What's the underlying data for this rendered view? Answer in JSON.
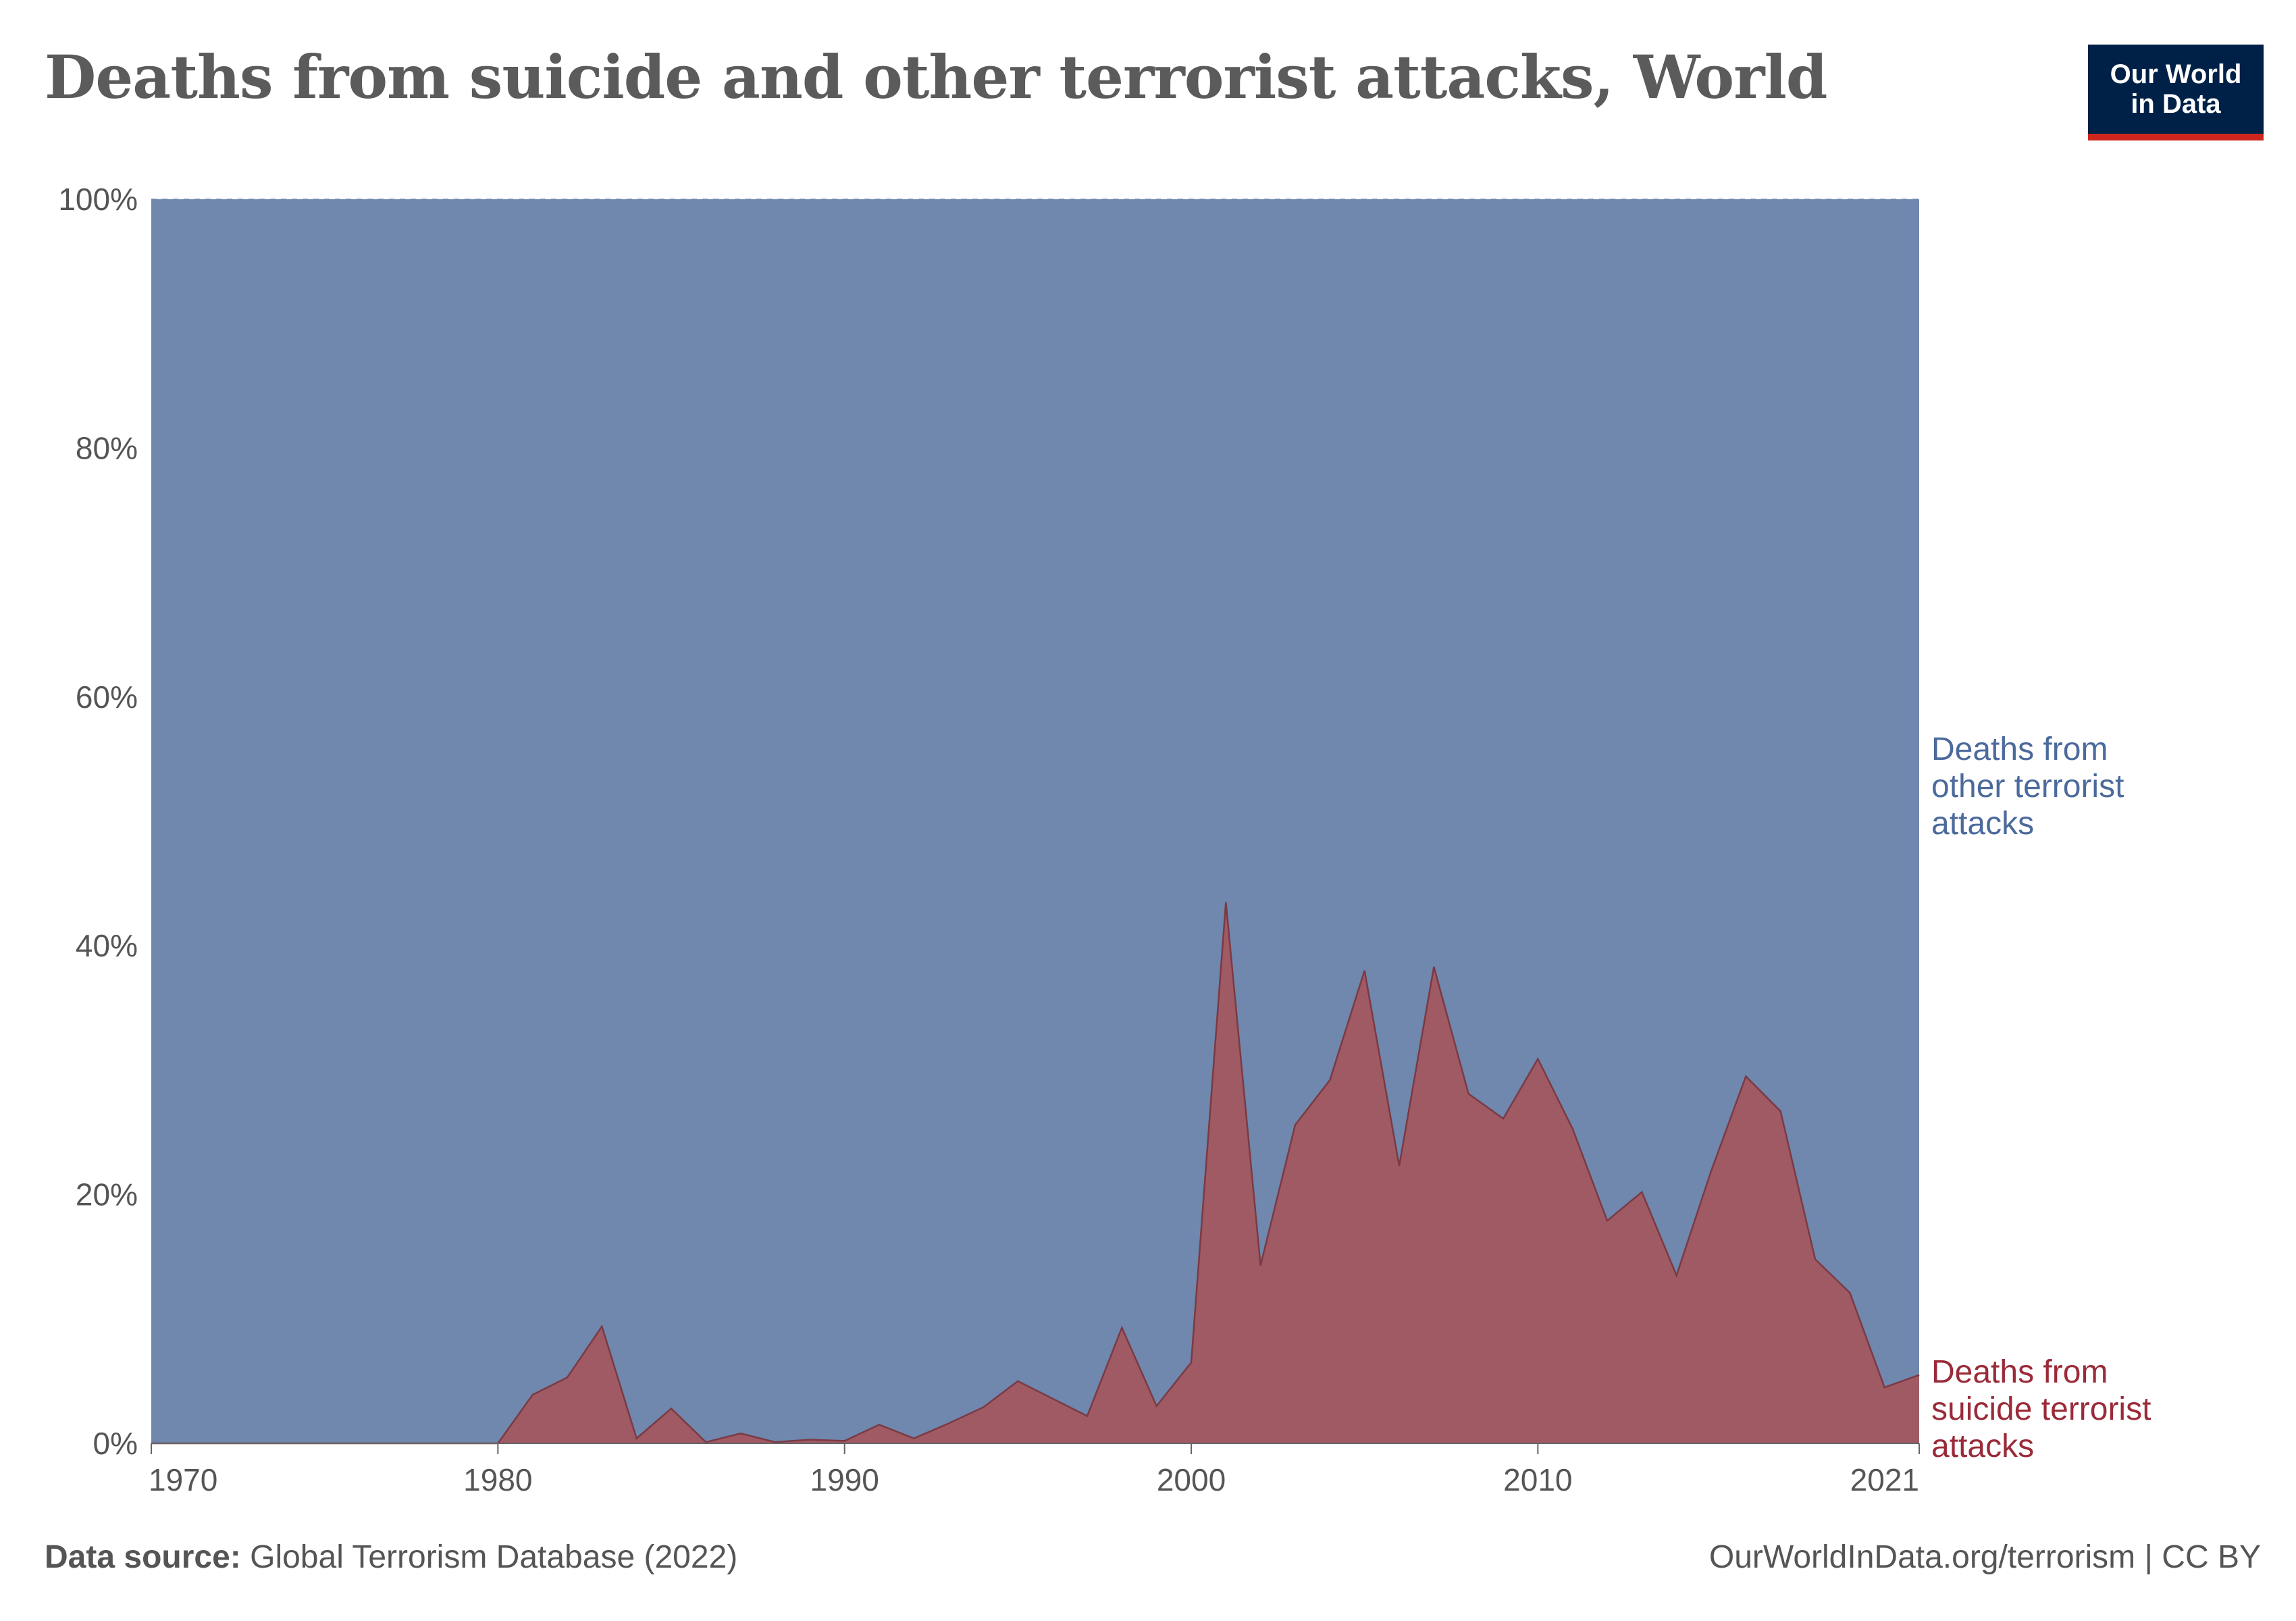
{
  "header": {
    "title": "Deaths from suicide and other terrorist attacks, World",
    "logo_line1": "Our World",
    "logo_line2": "in Data"
  },
  "footer": {
    "source_label": "Data source:",
    "source_text": "Global Terrorism Database (2022)",
    "url_text": "OurWorldInData.org/terrorism | CC BY"
  },
  "colors": {
    "other": "#7087AE",
    "suicide": "#A05A63",
    "suicide_line": "#7A3A44",
    "other_label": "#4C6A9C",
    "suicide_label": "#9A2B39",
    "axis_text": "#555555",
    "grid": "#8FA2C4"
  },
  "chart_data": {
    "type": "area",
    "stacking": "percent",
    "title": "Deaths from suicide and other terrorist attacks, World",
    "xlim": [
      1970,
      2021
    ],
    "ylim": [
      0,
      100
    ],
    "x_ticks": [
      1970,
      1980,
      1990,
      2000,
      2010,
      2021
    ],
    "y_ticks": [
      0,
      20,
      40,
      60,
      80,
      100
    ],
    "y_tick_labels": [
      "0%",
      "20%",
      "40%",
      "60%",
      "80%",
      "100%"
    ],
    "grid": "horizontal dashed",
    "legend": "right, end labels",
    "x": [
      1970,
      1971,
      1972,
      1973,
      1974,
      1975,
      1976,
      1977,
      1978,
      1979,
      1980,
      1981,
      1982,
      1983,
      1984,
      1985,
      1986,
      1987,
      1988,
      1989,
      1990,
      1991,
      1992,
      1993,
      1994,
      1995,
      1996,
      1997,
      1998,
      1999,
      2000,
      2001,
      2002,
      2003,
      2004,
      2005,
      2006,
      2007,
      2008,
      2009,
      2010,
      2011,
      2012,
      2013,
      2014,
      2015,
      2016,
      2017,
      2018,
      2019,
      2020,
      2021
    ],
    "series": [
      {
        "name": "Deaths from suicide terrorist attacks",
        "label_lines": [
          "Deaths from",
          "suicide terrorist",
          "attacks"
        ],
        "values": [
          0,
          0,
          0,
          0,
          0,
          0,
          0,
          0,
          0,
          0,
          0,
          3.9,
          5.3,
          9.4,
          0.4,
          2.8,
          0.1,
          0.8,
          0.1,
          0.3,
          0.2,
          1.5,
          0.4,
          1.6,
          2.9,
          5.0,
          3.6,
          2.2,
          9.3,
          3.0,
          6.5,
          43.5,
          14.3,
          25.6,
          29.2,
          38.0,
          22.3,
          38.3,
          28.1,
          26.1,
          30.9,
          25.3,
          17.9,
          20.2,
          13.5,
          21.9,
          29.5,
          26.7,
          14.8,
          12.1,
          4.5,
          5.5
        ]
      },
      {
        "name": "Deaths from other terrorist attacks",
        "label_lines": [
          "Deaths from",
          "other terrorist",
          "attacks"
        ],
        "values_rule": "100 minus suicide share"
      }
    ]
  }
}
